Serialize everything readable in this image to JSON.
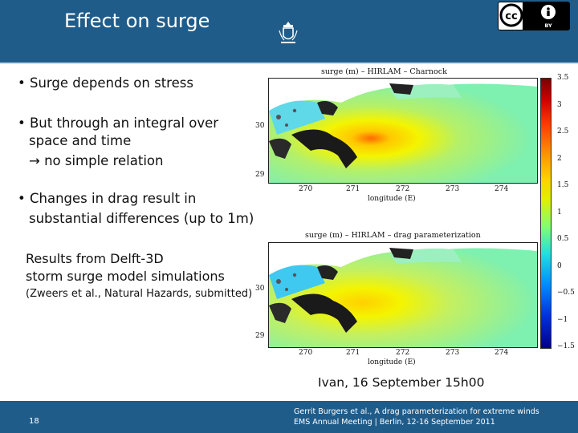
{
  "slide": {
    "title": "Effect on surge",
    "bullets": [
      "• Surge depends on stress",
      "• But through an integral over",
      "space and time",
      "→ no simple relation",
      "• Changes in drag result in",
      "substantial differences  (up to 1m)"
    ],
    "results_line1": "Results from Delft-3D",
    "results_line2": "storm surge model simulations",
    "reference": "(Zweers et al., Natural Hazards, submitted)",
    "caption": "Ivan, 16 September 15h00"
  },
  "maps": [
    {
      "title": "surge (m) – HIRLAM – Charnock",
      "y_ticks": [
        "30",
        "29"
      ],
      "x_ticks": [
        "270",
        "271",
        "272",
        "273",
        "274"
      ],
      "xlabel": "longitude (E)"
    },
    {
      "title": "surge (m) – HIRLAM – drag parameterization",
      "y_ticks": [
        "30",
        "29"
      ],
      "x_ticks": [
        "270",
        "271",
        "272",
        "273",
        "274"
      ],
      "xlabel": "longitude (E)"
    }
  ],
  "colorbar": {
    "ticks": [
      "3.5",
      "3",
      "2.5",
      "2",
      "1.5",
      "1",
      "0.5",
      "0",
      "−0.5",
      "−1",
      "−1.5"
    ]
  },
  "license_badge": {
    "label": "BY"
  },
  "footer": {
    "page_number": "18",
    "line1": "Gerrit Burgers et al., A drag parameterization for extreme winds",
    "line2": "EMS Annual Meeting | Berlin, 12-16 September 2011"
  },
  "colors": {
    "header": "#1f5c8a",
    "footer": "#1f5c8a"
  }
}
